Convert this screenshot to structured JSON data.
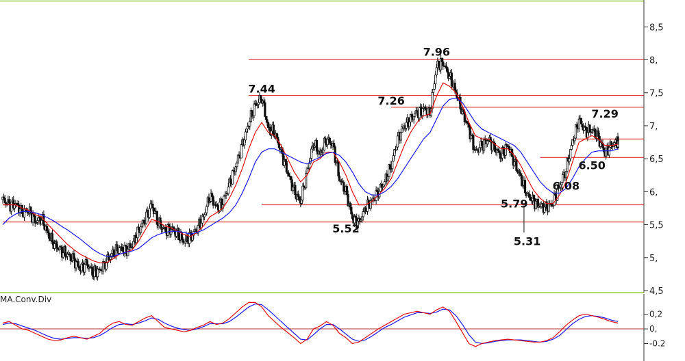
{
  "chart_data": [
    {
      "type": "candlestick",
      "y_ticks": [
        "8,5",
        "8,",
        "7,5",
        "7,",
        "6,5",
        "6,",
        "5,5",
        "5,",
        "4,5"
      ],
      "y_tick_values": [
        8.5,
        8.0,
        7.5,
        7.0,
        6.5,
        6.0,
        5.5,
        5.0,
        4.5
      ],
      "ylim": [
        4.5,
        8.7
      ],
      "grid": false,
      "series": [
        {
          "values": [
            5.88,
            5.8,
            5.82,
            5.68,
            5.72,
            5.55,
            5.6,
            5.35,
            5.2,
            5.1,
            5.05,
            4.95,
            4.85,
            4.9,
            4.78,
            4.8,
            4.95,
            5.05,
            5.15,
            5.1,
            5.2,
            5.4,
            5.6,
            5.8,
            5.55,
            5.4,
            5.45,
            5.35,
            5.25,
            5.3,
            5.45,
            5.6,
            5.95,
            5.75,
            5.85,
            6.1,
            6.4,
            6.7,
            7.05,
            7.3,
            7.44,
            6.95,
            6.9,
            6.6,
            6.3,
            6.0,
            5.85,
            6.3,
            6.75,
            6.55,
            6.8,
            6.7,
            6.2,
            6.0,
            5.6,
            5.52,
            5.75,
            5.85,
            6.0,
            6.15,
            6.4,
            6.8,
            7.0,
            7.1,
            7.2,
            7.26,
            7.2,
            7.9,
            7.96,
            7.75,
            7.5,
            7.2,
            6.95,
            6.6,
            6.7,
            6.8,
            6.65,
            6.55,
            6.7,
            6.45,
            6.2,
            5.95,
            5.85,
            5.79,
            5.75,
            5.85,
            6.08,
            6.35,
            6.75,
            7.1,
            6.9,
            6.95,
            6.8,
            6.6,
            6.7,
            6.75
          ]
        },
        {
          "name": "",
          "values": [
            5.8,
            5.8,
            5.8,
            5.75,
            5.72,
            5.65,
            5.62,
            5.5,
            5.4,
            5.3,
            5.2,
            5.12,
            5.05,
            5.0,
            4.95,
            4.92,
            4.92,
            4.98,
            5.05,
            5.08,
            5.12,
            5.25,
            5.42,
            5.58,
            5.55,
            5.48,
            5.45,
            5.4,
            5.35,
            5.32,
            5.38,
            5.48,
            5.62,
            5.68,
            5.75,
            5.9,
            6.1,
            6.35,
            6.65,
            6.9,
            7.05,
            6.9,
            6.85,
            6.7,
            6.5,
            6.3,
            6.15,
            6.25,
            6.45,
            6.5,
            6.6,
            6.6,
            6.45,
            6.25,
            6.0,
            5.8,
            5.8,
            5.85,
            5.95,
            6.05,
            6.2,
            6.45,
            6.7,
            6.9,
            7.05,
            7.15,
            7.18,
            7.45,
            7.65,
            7.6,
            7.5,
            7.3,
            7.05,
            6.85,
            6.8,
            6.8,
            6.72,
            6.65,
            6.65,
            6.55,
            6.4,
            6.2,
            6.02,
            5.9,
            5.82,
            5.82,
            5.95,
            6.15,
            6.45,
            6.75,
            6.8,
            6.85,
            6.8,
            6.7,
            6.7,
            6.72
          ]
        },
        {
          "name": "",
          "values": [
            5.5,
            5.6,
            5.66,
            5.7,
            5.7,
            5.68,
            5.65,
            5.6,
            5.55,
            5.48,
            5.42,
            5.35,
            5.28,
            5.2,
            5.12,
            5.06,
            5.02,
            5.02,
            5.05,
            5.08,
            5.1,
            5.14,
            5.22,
            5.3,
            5.35,
            5.38,
            5.4,
            5.4,
            5.38,
            5.36,
            5.38,
            5.42,
            5.48,
            5.54,
            5.6,
            5.68,
            5.8,
            5.98,
            6.2,
            6.45,
            6.6,
            6.65,
            6.65,
            6.6,
            6.55,
            6.5,
            6.45,
            6.42,
            6.48,
            6.52,
            6.58,
            6.6,
            6.55,
            6.45,
            6.3,
            6.12,
            6.0,
            5.95,
            5.95,
            6.0,
            6.08,
            6.2,
            6.35,
            6.5,
            6.65,
            6.8,
            6.9,
            7.1,
            7.3,
            7.4,
            7.42,
            7.35,
            7.2,
            7.05,
            6.95,
            6.9,
            6.85,
            6.8,
            6.75,
            6.7,
            6.6,
            6.45,
            6.3,
            6.15,
            6.05,
            5.98,
            5.98,
            6.05,
            6.2,
            6.38,
            6.5,
            6.6,
            6.62,
            6.62,
            6.62,
            6.65
          ]
        }
      ],
      "levels": [
        8.0,
        7.46,
        7.28,
        6.8,
        6.52,
        5.8,
        5.54
      ],
      "annotations": [
        {
          "text": "7.96",
          "x": 67,
          "y": 8.0
        },
        {
          "text": "7.44",
          "x": 40,
          "y": 7.44
        },
        {
          "text": "7.26",
          "x": 60,
          "y": 7.26
        },
        {
          "text": "7.29",
          "x": 93,
          "y": 7.06
        },
        {
          "text": "6.50",
          "x": 91,
          "y": 6.28
        },
        {
          "text": "6.08",
          "x": 87,
          "y": 5.97
        },
        {
          "text": "5.79",
          "x": 79,
          "y": 5.7
        },
        {
          "text": "5.52",
          "x": 53,
          "y": 5.32
        },
        {
          "text": "5.31",
          "x": 81,
          "y": 5.13
        }
      ],
      "colors": {
        "price": "#111111",
        "fast": "#e01010",
        "slow": "#1a1af0",
        "level": "#d61a1a"
      }
    },
    {
      "type": "line",
      "title": "MA.Conv.Div",
      "y_ticks": [
        "0,2",
        "0,",
        "-0.2"
      ],
      "y_tick_values": [
        0.2,
        0.0,
        -0.2
      ],
      "ylim": [
        -0.27,
        0.42
      ],
      "zero_line": 0.0,
      "series": [
        {
          "name": "",
          "values": [
            0.08,
            0.1,
            0.05,
            0.0,
            -0.02,
            -0.06,
            -0.1,
            -0.14,
            -0.16,
            -0.15,
            -0.12,
            -0.1,
            -0.12,
            -0.14,
            -0.1,
            -0.06,
            0.02,
            0.08,
            0.1,
            0.06,
            0.05,
            0.1,
            0.15,
            0.18,
            0.1,
            0.02,
            0.0,
            -0.02,
            -0.04,
            -0.02,
            0.02,
            0.05,
            0.1,
            0.06,
            0.08,
            0.14,
            0.22,
            0.3,
            0.36,
            0.36,
            0.3,
            0.18,
            0.1,
            0.02,
            -0.05,
            -0.12,
            -0.2,
            -0.14,
            0.0,
            0.04,
            0.1,
            0.05,
            -0.06,
            -0.12,
            -0.2,
            -0.18,
            -0.12,
            -0.06,
            0.0,
            0.05,
            0.1,
            0.15,
            0.2,
            0.22,
            0.24,
            0.22,
            0.2,
            0.26,
            0.3,
            0.24,
            0.1,
            -0.05,
            -0.2,
            -0.24,
            -0.2,
            -0.18,
            -0.16,
            -0.15,
            -0.14,
            -0.15,
            -0.16,
            -0.17,
            -0.18,
            -0.18,
            -0.16,
            -0.12,
            -0.04,
            0.05,
            0.12,
            0.18,
            0.2,
            0.18,
            0.16,
            0.13,
            0.1,
            0.08
          ]
        },
        {
          "name": "",
          "values": [
            0.06,
            0.08,
            0.07,
            0.04,
            0.01,
            -0.02,
            -0.06,
            -0.1,
            -0.13,
            -0.14,
            -0.13,
            -0.12,
            -0.12,
            -0.13,
            -0.12,
            -0.09,
            -0.04,
            0.02,
            0.06,
            0.07,
            0.06,
            0.08,
            0.11,
            0.15,
            0.13,
            0.08,
            0.04,
            0.01,
            -0.01,
            -0.02,
            0.0,
            0.03,
            0.07,
            0.07,
            0.07,
            0.1,
            0.16,
            0.23,
            0.3,
            0.34,
            0.33,
            0.26,
            0.18,
            0.1,
            0.02,
            -0.06,
            -0.14,
            -0.15,
            -0.08,
            0.0,
            0.06,
            0.06,
            0.0,
            -0.07,
            -0.14,
            -0.17,
            -0.15,
            -0.1,
            -0.04,
            0.02,
            0.06,
            0.11,
            0.16,
            0.19,
            0.22,
            0.22,
            0.21,
            0.23,
            0.27,
            0.26,
            0.18,
            0.06,
            -0.08,
            -0.18,
            -0.2,
            -0.19,
            -0.17,
            -0.16,
            -0.15,
            -0.15,
            -0.15,
            -0.16,
            -0.17,
            -0.18,
            -0.17,
            -0.14,
            -0.09,
            -0.01,
            0.07,
            0.13,
            0.17,
            0.18,
            0.17,
            0.15,
            0.12,
            0.1
          ]
        }
      ],
      "colors": {
        "macd": "#e01010",
        "signal": "#1a1af0",
        "zero": "#b03030"
      }
    }
  ]
}
